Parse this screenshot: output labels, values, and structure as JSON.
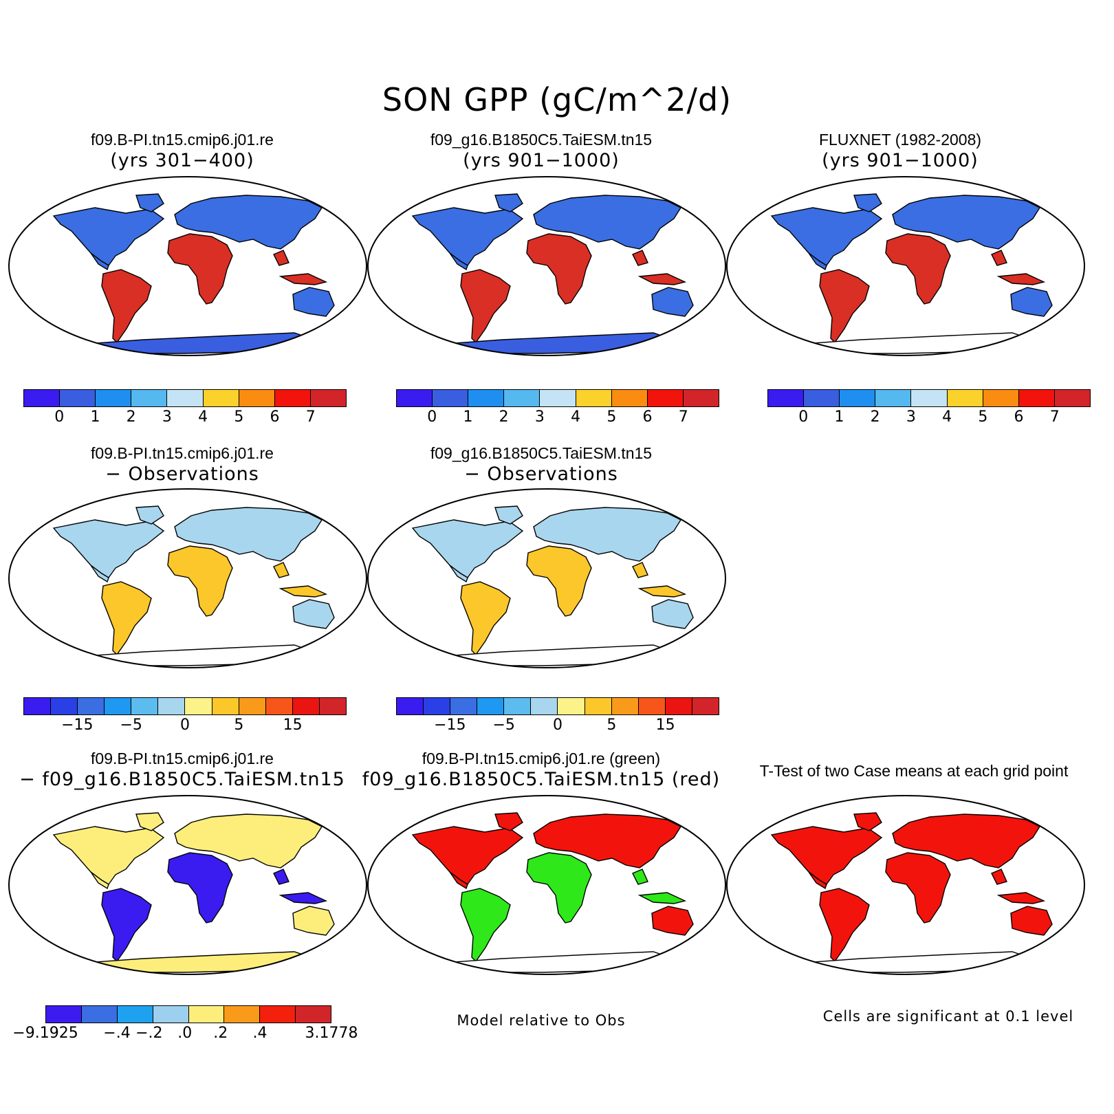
{
  "title": "SON GPP (gC/m^2/d)",
  "palettes": {
    "abs": [
      "#3a1cf0",
      "#3a5ee0",
      "#1e8ff0",
      "#55b8ee",
      "#c4e4f6",
      "#fbd12b",
      "#fa8c12",
      "#f2140c",
      "#d2252a"
    ],
    "diff": [
      "#3a1cf0",
      "#2a40e6",
      "#3a6ee2",
      "#1e98f0",
      "#5cbcee",
      "#a8d6ee",
      "#fcf28a",
      "#fcc72a",
      "#fa9a1a",
      "#f7561a",
      "#ea1510",
      "#d2252a"
    ],
    "case": [
      "#3a1cf0",
      "#3a6ee2",
      "#1ea2f0",
      "#9dcfee",
      "#fdee7c",
      "#fa9a1a",
      "#f2200c",
      "#d2252a"
    ]
  },
  "panels": [
    {
      "id": "p1",
      "line1": "f09.B-PI.tn15.cmip6.j01.re",
      "line2": "(yrs 301−400)",
      "kind": "abs",
      "antarctica": "#3a5ee0",
      "tropics": "#d92f25",
      "land": "#3a6ee2"
    },
    {
      "id": "p2",
      "line1": "f09_g16.B1850C5.TaiESM.tn15",
      "line2": "(yrs 901−1000)",
      "kind": "abs",
      "antarctica": "#3a5ee0",
      "tropics": "#d92f25",
      "land": "#3a6ee2"
    },
    {
      "id": "p3",
      "line1": "FLUXNET (1982-2008)",
      "line2": "(yrs 901−1000)",
      "kind": "abs",
      "antarctica": "none",
      "tropics": "#d92f25",
      "land": "#3a6ee2"
    },
    {
      "id": "p4",
      "line1": "f09.B-PI.tn15.cmip6.j01.re",
      "line2": "− Observations",
      "kind": "diff",
      "antarctica": "none",
      "tropics": "#fcc72a",
      "land": "#a8d6ee"
    },
    {
      "id": "p5",
      "line1": "f09_g16.B1850C5.TaiESM.tn15",
      "line2": "− Observations",
      "kind": "diff",
      "antarctica": "none",
      "tropics": "#fcc72a",
      "land": "#a8d6ee"
    },
    {
      "id": "p6",
      "line1": "f09.B-PI.tn15.cmip6.j01.re",
      "line2": "− f09_g16.B1850C5.TaiESM.tn15",
      "kind": "case",
      "antarctica": "#fdee7c",
      "tropics": "#3a1cf0",
      "land": "#fdee7c"
    },
    {
      "id": "p7",
      "line1": "f09.B-PI.tn15.cmip6.j01.re (green)",
      "line2": "f09_g16.B1850C5.TaiESM.tn15 (red)",
      "kind": "rel",
      "antarctica": "none",
      "tropics": "#2ee81a",
      "land": "#f2140c"
    },
    {
      "id": "p8",
      "line1": "T-Test of two Case means at each grid point",
      "line2": "",
      "kind": "ttest",
      "antarctica": "none",
      "tropics": "#f2140c",
      "land": "#f2140c"
    }
  ],
  "colorbars": {
    "abs_ticks": [
      "0",
      "1",
      "2",
      "3",
      "4",
      "5",
      "6",
      "7"
    ],
    "diff_ticks": [
      "−15",
      "−5",
      "0",
      "5",
      "15"
    ],
    "case_ticks": [
      "−9.1925",
      "−.4",
      "−.2",
      ".0",
      ".2",
      ".4",
      "3.1778"
    ]
  },
  "notes": {
    "relative": "Model relative to Obs",
    "significance": "Cells are significant at 0.1 level"
  }
}
